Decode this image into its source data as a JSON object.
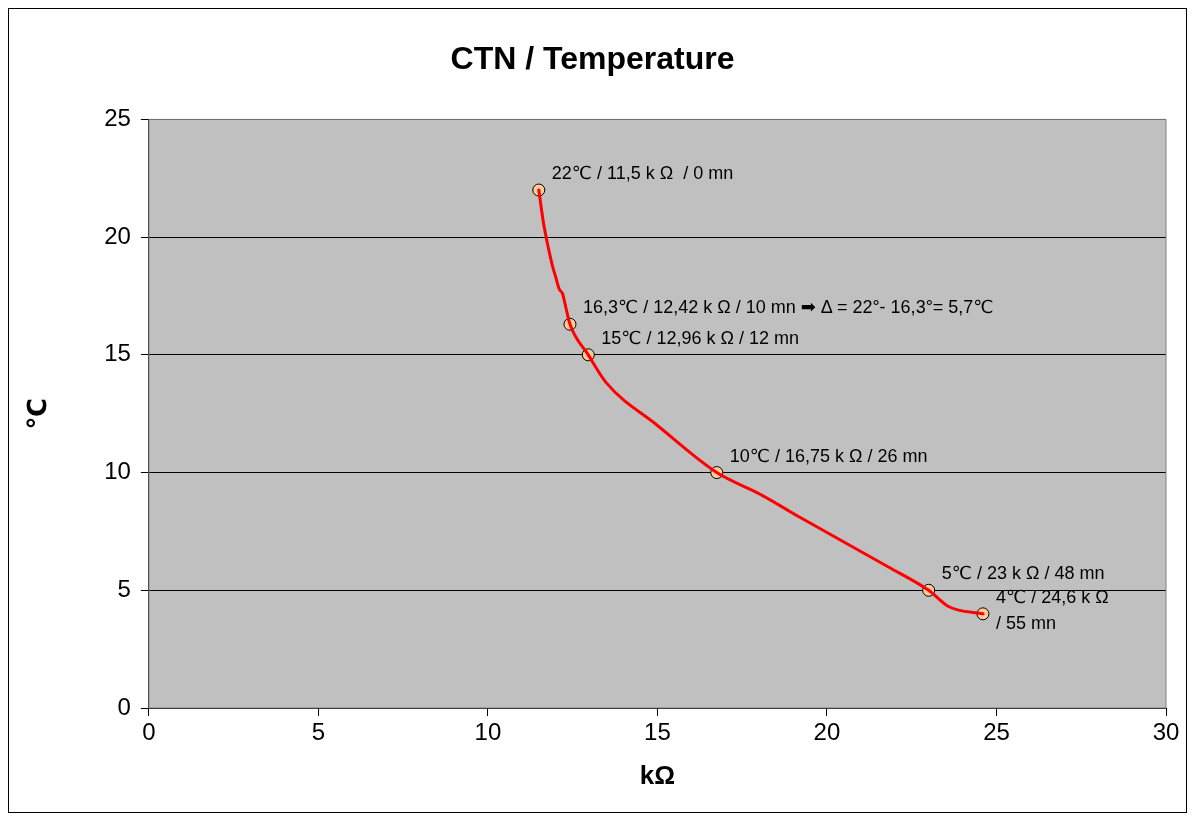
{
  "chart_data": {
    "type": "line",
    "title": "CTN / Temperature",
    "xlabel": "kΩ",
    "ylabel": "℃",
    "xlim": [
      0,
      30
    ],
    "xticks": [
      0,
      5,
      10,
      15,
      20,
      25,
      30
    ],
    "ylim": [
      0,
      25
    ],
    "yticks": [
      0,
      5,
      10,
      15,
      20,
      25
    ],
    "grid": "y",
    "legend": false,
    "series": [
      {
        "type": "line",
        "marker": "none",
        "color": "#ff0000",
        "x": [
          11.5,
          11.65,
          11.9,
          12.0,
          12.1,
          12.2,
          12.3,
          12.42,
          12.96,
          13.5,
          15,
          16.75,
          18,
          19.2,
          21.8,
          23,
          23.6,
          24.6
        ],
        "values": [
          22,
          20.5,
          18.8,
          18.3,
          17.8,
          17.6,
          17.0,
          16.3,
          15,
          13.8,
          12,
          10,
          9.1,
          8.1,
          6.0,
          5,
          4.3,
          4
        ]
      },
      {
        "type": "scatter",
        "marker": "circle",
        "color": "#ffcc99",
        "x": [
          11.5,
          12.42,
          12.96,
          16.75,
          23,
          24.6
        ],
        "values": [
          22,
          16.3,
          15,
          10,
          5,
          4
        ]
      }
    ],
    "annotations": [
      {
        "text": "22℃ / 11,5 k Ω  / 0 mn",
        "x": 11.5,
        "y": 22
      },
      {
        "text": "16,3℃ / 12,42 k Ω / 10 mn ➡ Δ = 22°- 16,3°= 5,7℃",
        "x": 12.42,
        "y": 16.3
      },
      {
        "text": "15℃ / 12,96 k Ω / 12 mn",
        "x": 12.96,
        "y": 15
      },
      {
        "text": "10℃ / 16,75 k Ω / 26 mn",
        "x": 16.75,
        "y": 10
      },
      {
        "text": "5℃ / 23 k Ω / 48 mn",
        "x": 23,
        "y": 5
      },
      {
        "text": "4℃ / 24,6 k Ω\n/ 55 mn",
        "x": 24.6,
        "y": 4
      }
    ]
  }
}
